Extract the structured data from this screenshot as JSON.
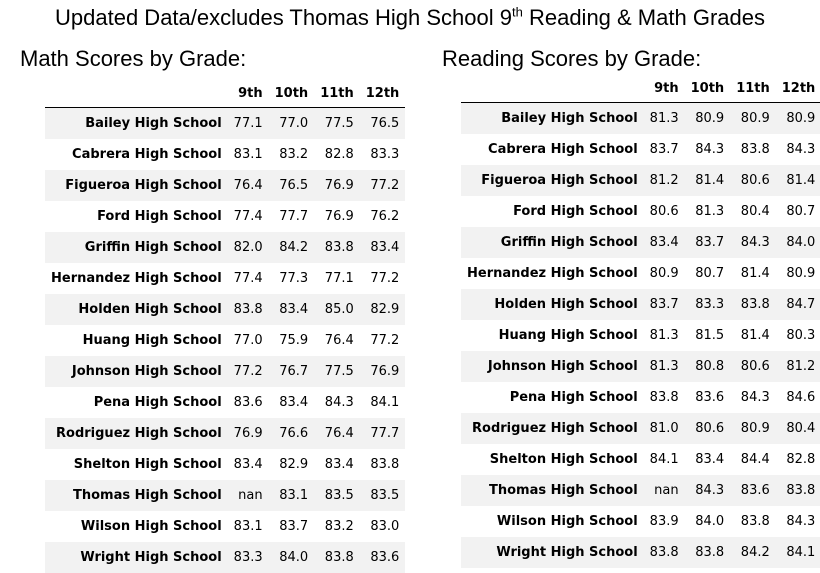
{
  "title": {
    "prefix": "Updated Data/excludes Thomas High School 9",
    "sup": "th",
    "suffix": " Reading & Math Grades"
  },
  "math": {
    "heading": "Math Scores by Grade:",
    "columns": [
      "",
      "9th",
      "10th",
      "11th",
      "12th"
    ],
    "rows": [
      {
        "school": "Bailey High School",
        "values": [
          "77.1",
          "77.0",
          "77.5",
          "76.5"
        ]
      },
      {
        "school": "Cabrera High School",
        "values": [
          "83.1",
          "83.2",
          "82.8",
          "83.3"
        ]
      },
      {
        "school": "Figueroa High School",
        "values": [
          "76.4",
          "76.5",
          "76.9",
          "77.2"
        ]
      },
      {
        "school": "Ford High School",
        "values": [
          "77.4",
          "77.7",
          "76.9",
          "76.2"
        ]
      },
      {
        "school": "Griffin High School",
        "values": [
          "82.0",
          "84.2",
          "83.8",
          "83.4"
        ]
      },
      {
        "school": "Hernandez High School",
        "values": [
          "77.4",
          "77.3",
          "77.1",
          "77.2"
        ]
      },
      {
        "school": "Holden High School",
        "values": [
          "83.8",
          "83.4",
          "85.0",
          "82.9"
        ]
      },
      {
        "school": "Huang High School",
        "values": [
          "77.0",
          "75.9",
          "76.4",
          "77.2"
        ]
      },
      {
        "school": "Johnson High School",
        "values": [
          "77.2",
          "76.7",
          "77.5",
          "76.9"
        ]
      },
      {
        "school": "Pena High School",
        "values": [
          "83.6",
          "83.4",
          "84.3",
          "84.1"
        ]
      },
      {
        "school": "Rodriguez High School",
        "values": [
          "76.9",
          "76.6",
          "76.4",
          "77.7"
        ]
      },
      {
        "school": "Shelton High School",
        "values": [
          "83.4",
          "82.9",
          "83.4",
          "83.8"
        ]
      },
      {
        "school": "Thomas High School",
        "values": [
          "nan",
          "83.1",
          "83.5",
          "83.5"
        ]
      },
      {
        "school": "Wilson High School",
        "values": [
          "83.1",
          "83.7",
          "83.2",
          "83.0"
        ]
      },
      {
        "school": "Wright High School",
        "values": [
          "83.3",
          "84.0",
          "83.8",
          "83.6"
        ]
      }
    ]
  },
  "reading": {
    "heading": "Reading Scores by Grade:",
    "columns": [
      "",
      "9th",
      "10th",
      "11th",
      "12th"
    ],
    "rows": [
      {
        "school": "Bailey High School",
        "values": [
          "81.3",
          "80.9",
          "80.9",
          "80.9"
        ]
      },
      {
        "school": "Cabrera High School",
        "values": [
          "83.7",
          "84.3",
          "83.8",
          "84.3"
        ]
      },
      {
        "school": "Figueroa High School",
        "values": [
          "81.2",
          "81.4",
          "80.6",
          "81.4"
        ]
      },
      {
        "school": "Ford High School",
        "values": [
          "80.6",
          "81.3",
          "80.4",
          "80.7"
        ]
      },
      {
        "school": "Griffin High School",
        "values": [
          "83.4",
          "83.7",
          "84.3",
          "84.0"
        ]
      },
      {
        "school": "Hernandez High School",
        "values": [
          "80.9",
          "80.7",
          "81.4",
          "80.9"
        ]
      },
      {
        "school": "Holden High School",
        "values": [
          "83.7",
          "83.3",
          "83.8",
          "84.7"
        ]
      },
      {
        "school": "Huang High School",
        "values": [
          "81.3",
          "81.5",
          "81.4",
          "80.3"
        ]
      },
      {
        "school": "Johnson High School",
        "values": [
          "81.3",
          "80.8",
          "80.6",
          "81.2"
        ]
      },
      {
        "school": "Pena High School",
        "values": [
          "83.8",
          "83.6",
          "84.3",
          "84.6"
        ]
      },
      {
        "school": "Rodriguez High School",
        "values": [
          "81.0",
          "80.6",
          "80.9",
          "80.4"
        ]
      },
      {
        "school": "Shelton High School",
        "values": [
          "84.1",
          "83.4",
          "84.4",
          "82.8"
        ]
      },
      {
        "school": "Thomas High School",
        "values": [
          "nan",
          "84.3",
          "83.6",
          "83.8"
        ]
      },
      {
        "school": "Wilson High School",
        "values": [
          "83.9",
          "84.0",
          "83.8",
          "84.3"
        ]
      },
      {
        "school": "Wright High School",
        "values": [
          "83.8",
          "83.8",
          "84.2",
          "84.1"
        ]
      }
    ]
  }
}
